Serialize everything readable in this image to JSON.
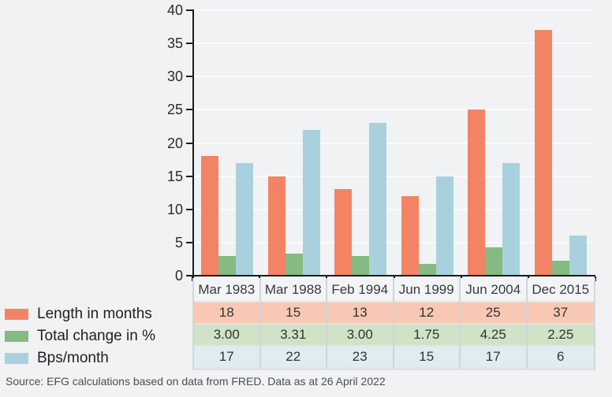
{
  "page": {
    "background": "#f0f2f4",
    "source_note": "Source: EFG calculations based on data from FRED. Data as at 26 April 2022"
  },
  "chart_data": {
    "type": "bar",
    "title": "",
    "categories": [
      "Mar 1983",
      "Mar 1988",
      "Feb 1994",
      "Jun 1999",
      "Jun 2004",
      "Dec 2015"
    ],
    "series": [
      {
        "name": "Length in months",
        "color": "#f28465",
        "row_color": "#f9c8b4",
        "values": [
          18,
          15,
          13,
          12,
          25,
          37
        ],
        "display": [
          "18",
          "15",
          "13",
          "12",
          "25",
          "37"
        ]
      },
      {
        "name": "Total change in %",
        "color": "#85bb80",
        "row_color": "#d0e3c6",
        "values": [
          3.0,
          3.31,
          3.0,
          1.75,
          4.25,
          2.25
        ],
        "display": [
          "3.00",
          "3.31",
          "3.00",
          "1.75",
          "4.25",
          "2.25"
        ]
      },
      {
        "name": "Bps/month",
        "color": "#a9d1dd",
        "row_color": "#dfecf2",
        "values": [
          17,
          22,
          23,
          15,
          17,
          6
        ],
        "display": [
          "17",
          "22",
          "23",
          "15",
          "17",
          "6"
        ]
      }
    ],
    "ylim": [
      0,
      40
    ],
    "yticks": [
      0,
      5,
      10,
      15,
      20,
      25,
      30,
      35,
      40
    ],
    "grid": true,
    "legend_position": "bottom-left",
    "table_shown": true
  }
}
